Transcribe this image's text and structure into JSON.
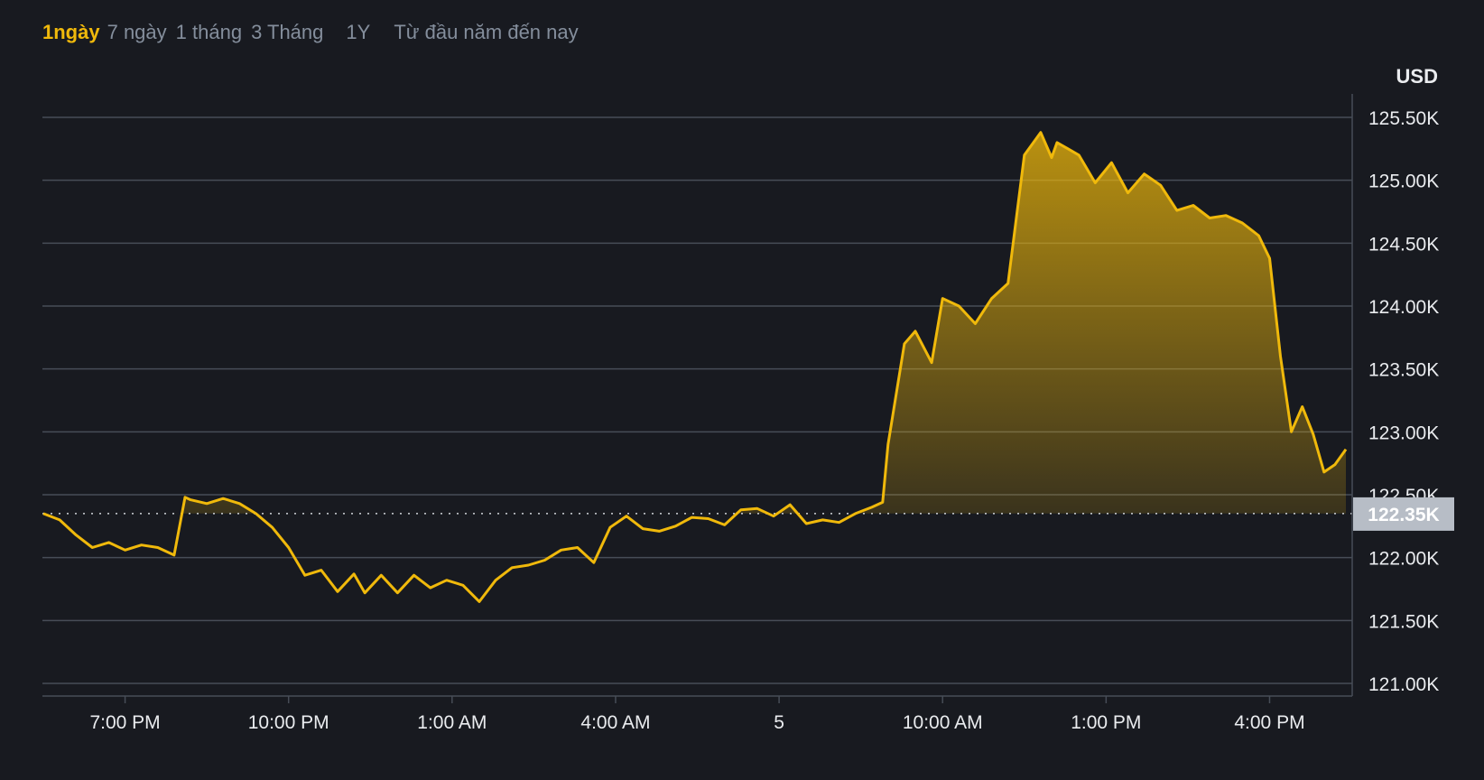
{
  "tabs": [
    {
      "label": "1ngày",
      "active": true
    },
    {
      "label": "7 ngày",
      "active": false
    },
    {
      "label": "1 tháng",
      "active": false
    },
    {
      "label": "3 Tháng",
      "active": false
    },
    {
      "label": "1Y",
      "active": false
    },
    {
      "label": "Từ đầu năm đến nay",
      "active": false
    }
  ],
  "currency": "USD",
  "colors": {
    "background": "#181a20",
    "line": "#f0b90b",
    "grid": "#474d57",
    "axis_text": "#eaecef",
    "tab_active": "#f0b90b",
    "tab_inactive": "#848e9c",
    "price_tag_bg": "#b7bdc6"
  },
  "chart_data": {
    "type": "area",
    "title": "",
    "xlabel": "",
    "ylabel": "USD",
    "ylim": [
      121000,
      125500
    ],
    "yticks": [
      121000,
      121500,
      122000,
      122500,
      123000,
      123500,
      124000,
      124500,
      125000,
      125500
    ],
    "ytick_labels": [
      "121.00K",
      "121.50K",
      "122.00K",
      "122.50K",
      "123.00K",
      "123.50K",
      "124.00K",
      "124.50K",
      "125.00K",
      "125.50K"
    ],
    "xlim": [
      17.5,
      41.4
    ],
    "xticks": [
      19,
      22,
      25,
      28,
      31,
      34,
      37,
      40
    ],
    "xtick_labels": [
      "7:00 PM",
      "10:00 PM",
      "1:00 AM",
      "4:00 AM",
      "5",
      "10:00 AM",
      "1:00 PM",
      "4:00 PM"
    ],
    "current_price": 122350,
    "current_price_label": "122.35K",
    "grid": true,
    "series": [
      {
        "x": [
          17.5,
          17.8,
          18.1,
          18.4,
          18.7,
          19.0,
          19.3,
          19.6,
          19.9,
          20.1,
          20.2,
          20.5,
          20.8,
          21.1,
          21.4,
          21.7,
          22.0,
          22.3,
          22.6,
          22.9,
          23.2,
          23.4,
          23.7,
          24.0,
          24.3,
          24.6,
          24.9,
          25.2,
          25.5,
          25.8,
          26.1,
          26.4,
          26.7,
          27.0,
          27.3,
          27.6,
          27.9,
          28.2,
          28.5,
          28.8,
          29.1,
          29.4,
          29.7,
          30.0,
          30.3,
          30.6,
          30.9,
          31.2,
          31.5,
          31.8,
          32.1,
          32.4,
          32.7,
          32.9,
          33.0,
          33.3,
          33.5,
          33.8,
          34.0,
          34.3,
          34.6,
          34.9,
          35.2,
          35.5,
          35.8,
          36.0,
          36.1,
          36.3,
          36.5,
          36.8,
          37.1,
          37.4,
          37.7,
          38.0,
          38.3,
          38.6,
          38.9,
          39.2,
          39.5,
          39.8,
          40.0,
          40.2,
          40.4,
          40.6,
          40.8,
          41.0,
          41.2,
          41.4
        ],
        "values": [
          122350,
          122300,
          122180,
          122080,
          122120,
          122060,
          122100,
          122080,
          122020,
          122480,
          122460,
          122430,
          122470,
          122430,
          122350,
          122240,
          122080,
          121860,
          121900,
          121730,
          121870,
          121720,
          121860,
          121720,
          121860,
          121760,
          121820,
          121780,
          121650,
          121820,
          121920,
          121940,
          121980,
          122060,
          122080,
          121960,
          122240,
          122330,
          122230,
          122210,
          122250,
          122320,
          122310,
          122260,
          122380,
          122390,
          122330,
          122420,
          122270,
          122300,
          122280,
          122350,
          122400,
          122440,
          122900,
          123700,
          123800,
          123550,
          124060,
          124000,
          123860,
          124060,
          124180,
          125200,
          125380,
          125180,
          125300,
          125250,
          125200,
          124980,
          125140,
          124900,
          125050,
          124960,
          124760,
          124800,
          124700,
          124720,
          124660,
          124560,
          124380,
          123600,
          123000,
          123200,
          122980,
          122680,
          122740,
          122860
        ]
      }
    ]
  }
}
